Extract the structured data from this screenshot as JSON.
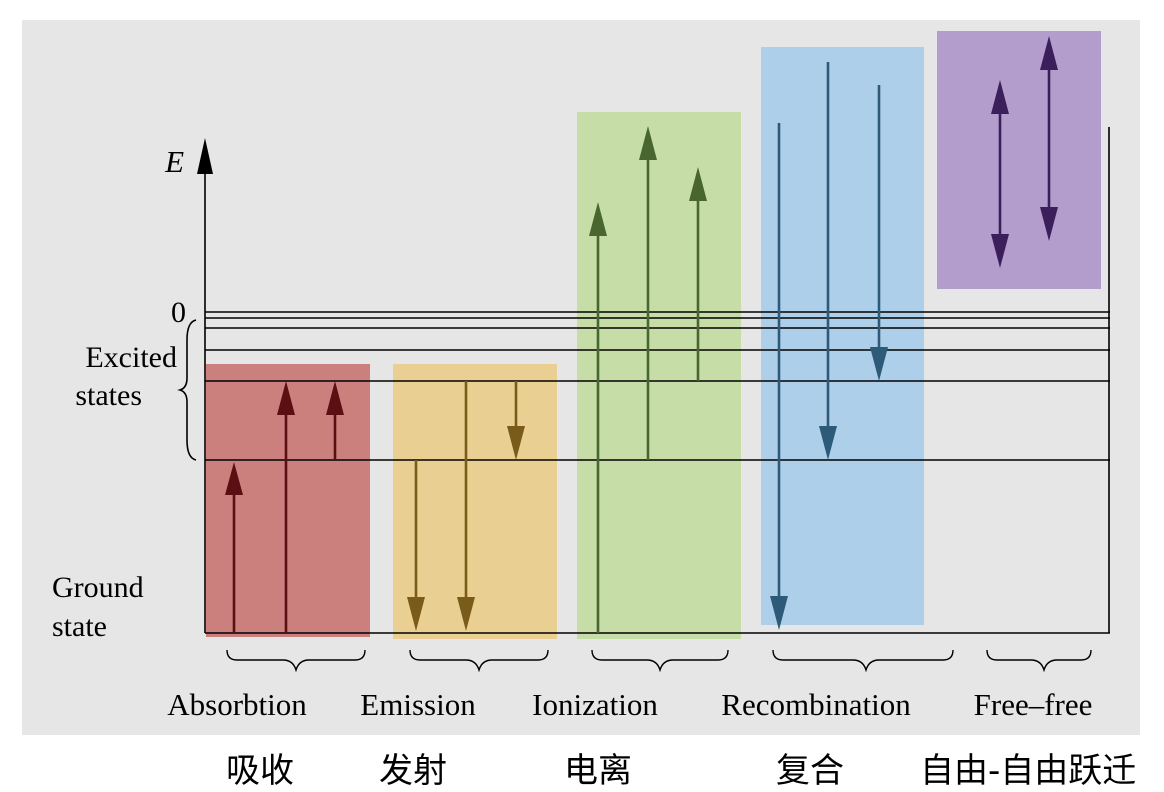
{
  "diagram": {
    "axis_label": "E",
    "zero_label": "0",
    "excited_label": [
      "Excited",
      "states"
    ],
    "ground_label": [
      "Ground",
      "state"
    ],
    "processes": [
      {
        "key": "absorption",
        "label": "Absorbtion",
        "cn_label": "吸收",
        "color": "#c0504d",
        "arrow_color": "#5a0f12",
        "direction": "up"
      },
      {
        "key": "emission",
        "label": "Emission",
        "cn_label": "发射",
        "color": "#ecc46a",
        "arrow_color": "#7a5c1a",
        "direction": "down"
      },
      {
        "key": "ionization",
        "label": "Ionization",
        "cn_label": "电离",
        "color": "#b7d98a",
        "arrow_color": "#4a6630",
        "direction": "up"
      },
      {
        "key": "recombination",
        "label": "Recombination",
        "cn_label": "复合",
        "color": "#93c4ea",
        "arrow_color": "#2d5a78",
        "direction": "down"
      },
      {
        "key": "free_free",
        "label": "Free–free",
        "cn_label": "自由-自由跃迁",
        "color": "#9b7bbf",
        "arrow_color": "#3b1f5a",
        "direction": "both"
      }
    ]
  }
}
